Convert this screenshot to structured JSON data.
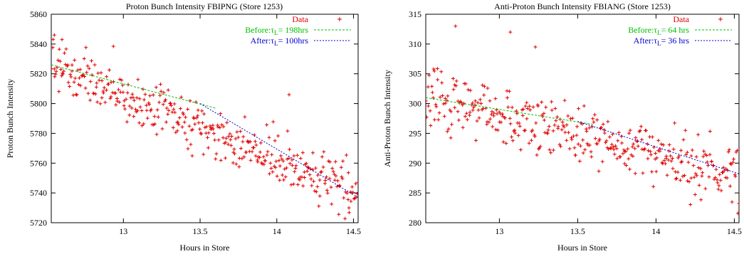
{
  "chart_data": [
    {
      "type": "scatter",
      "title": "Proton Bunch Intensity FBIPNG (Store 1253)",
      "xlabel": "Hours in Store",
      "ylabel": "Proton Bunch Intensity",
      "xlim": [
        12.53,
        14.53
      ],
      "ylim": [
        5720,
        5860
      ],
      "x_ticks": [
        13,
        13.5,
        14,
        14.5
      ],
      "x_tick_labels": [
        "13",
        "13.5",
        "14",
        "14.5"
      ],
      "y_ticks": [
        5720,
        5740,
        5760,
        5780,
        5800,
        5820,
        5840,
        5860
      ],
      "y_tick_labels": [
        "5720",
        "5740",
        "5760",
        "5780",
        "5800",
        "5820",
        "5840",
        "5860"
      ],
      "legend_position": "top-right",
      "series": [
        {
          "name": "Data",
          "kind": "points",
          "color": "#e00000",
          "marker": "+",
          "n_points": 400,
          "trend_start": 5826,
          "trend_end": 5739,
          "noise": 8,
          "seed": 7,
          "outliers": [
            [
              12.55,
              5846
            ],
            [
              12.6,
              5843
            ],
            [
              14.08,
              5806
            ],
            [
              14.47,
              5730
            ]
          ]
        },
        {
          "name": "Before:τL= 198hrs",
          "label_prefix": "Before:τ",
          "label_sub": "L",
          "label_suffix": "= 198hrs",
          "kind": "fit",
          "color": "#00c000",
          "dash": "3,2",
          "x": [
            12.53,
            13.6
          ],
          "y": [
            5826,
            5797
          ]
        },
        {
          "name": "After:τL= 100hrs",
          "label_prefix": "After:τ",
          "label_sub": "L",
          "label_suffix": "= 100hrs",
          "kind": "fit",
          "color": "#0000d0",
          "dash": "2,2",
          "x": [
            13.5,
            14.53
          ],
          "y": [
            5800,
            5737
          ]
        }
      ]
    },
    {
      "type": "scatter",
      "title": "Anti-Proton Bunch Intensity FBIANG (Store 1253)",
      "xlabel": "Hours in Store",
      "ylabel": "Anti-Proton Bunch Intensity",
      "xlim": [
        12.53,
        14.53
      ],
      "ylim": [
        280,
        315
      ],
      "x_ticks": [
        13,
        13.5,
        14,
        14.5
      ],
      "x_tick_labels": [
        "13",
        "13.5",
        "14",
        "14.5"
      ],
      "y_ticks": [
        280,
        285,
        290,
        295,
        300,
        305,
        310,
        315
      ],
      "y_tick_labels": [
        "280",
        "285",
        "290",
        "295",
        "300",
        "305",
        "310",
        "315"
      ],
      "legend_position": "top-right",
      "series": [
        {
          "name": "Data",
          "kind": "points",
          "color": "#e00000",
          "marker": "+",
          "n_points": 400,
          "trend_start": 301,
          "trend_end": 288,
          "noise": 2.4,
          "seed": 13,
          "outliers": [
            [
              12.72,
              313
            ],
            [
              13.07,
              312
            ],
            [
              13.23,
              309.5
            ],
            [
              12.58,
              305.8
            ]
          ]
        },
        {
          "name": "Before:τL= 64 hrs",
          "label_prefix": "Before:τ",
          "label_sub": "L",
          "label_suffix": "= 64 hrs",
          "kind": "fit",
          "color": "#00c000",
          "dash": "3,2",
          "x": [
            12.53,
            13.6
          ],
          "y": [
            301,
            296.5
          ]
        },
        {
          "name": "After:τL= 36 hrs",
          "label_prefix": "After:τ",
          "label_sub": "L",
          "label_suffix": "= 36 hrs",
          "kind": "fit",
          "color": "#0000d0",
          "dash": "2,2",
          "x": [
            13.5,
            14.53
          ],
          "y": [
            297,
            288.2
          ]
        }
      ]
    }
  ]
}
